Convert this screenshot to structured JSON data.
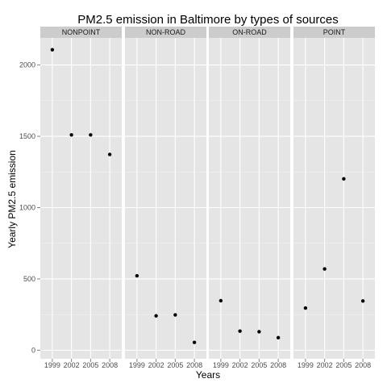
{
  "chart_data": {
    "type": "scatter",
    "title": "PM2.5 emission in Baltimore by types of sources",
    "xlabel": "Years",
    "ylabel": "Yearly PM2.5 emission",
    "x": [
      "1999",
      "2002",
      "2005",
      "2008"
    ],
    "yticks": [
      "0",
      "500",
      "1000",
      "1500",
      "2000"
    ],
    "ylim": [
      -60,
      2190
    ],
    "grid": true,
    "legend": "none",
    "facets": [
      {
        "name": "NONPOINT",
        "values": [
          2107,
          1510,
          1510,
          1373
        ]
      },
      {
        "name": "NON-ROAD",
        "values": [
          522,
          241,
          248,
          55
        ]
      },
      {
        "name": "ON-ROAD",
        "values": [
          347,
          134,
          130,
          88
        ]
      },
      {
        "name": "POINT",
        "values": [
          296,
          570,
          1202,
          345
        ]
      }
    ]
  },
  "colors": {
    "panel_background": "#e5e5e5",
    "strip_background": "#cccccc",
    "gridline": "#ffffff",
    "point": "#000000"
  }
}
